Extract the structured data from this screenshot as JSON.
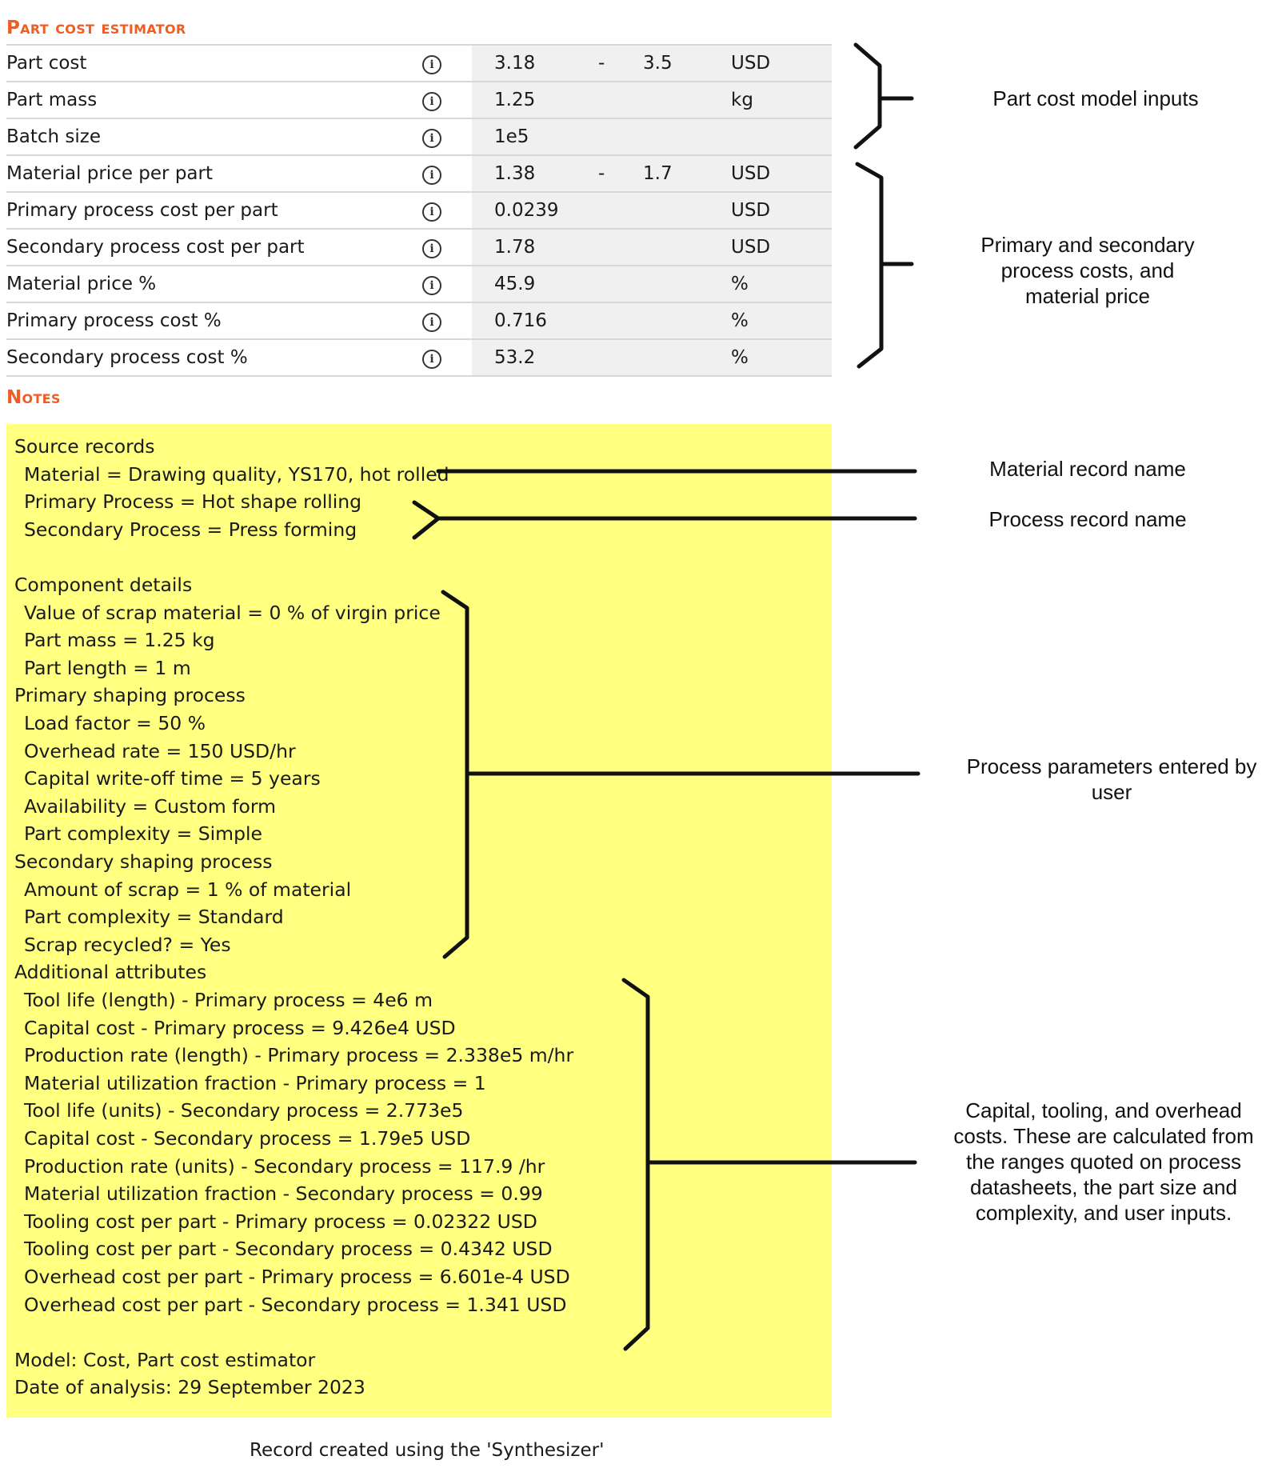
{
  "estimator": {
    "title": "Part cost estimator",
    "rows": [
      {
        "name": "Part cost",
        "v1": "3.18",
        "dash": "-",
        "v2": "3.5",
        "unit": "USD"
      },
      {
        "name": "Part mass",
        "v1": "1.25",
        "dash": "",
        "v2": "",
        "unit": "kg"
      },
      {
        "name": "Batch size",
        "v1": "1e5",
        "dash": "",
        "v2": "",
        "unit": ""
      },
      {
        "name": "Material price per part",
        "v1": "1.38",
        "dash": "-",
        "v2": "1.7",
        "unit": "USD"
      },
      {
        "name": "Primary process cost per part",
        "v1": "0.0239",
        "dash": "",
        "v2": "",
        "unit": "USD"
      },
      {
        "name": "Secondary process cost per part",
        "v1": "1.78",
        "dash": "",
        "v2": "",
        "unit": "USD"
      },
      {
        "name": "Material price %",
        "v1": "45.9",
        "dash": "",
        "v2": "",
        "unit": "%"
      },
      {
        "name": "Primary process cost %",
        "v1": "0.716",
        "dash": "",
        "v2": "",
        "unit": "%"
      },
      {
        "name": "Secondary process cost %",
        "v1": "53.2",
        "dash": "",
        "v2": "",
        "unit": "%"
      }
    ]
  },
  "notes": {
    "title": "Notes",
    "lines": [
      {
        "text": "Source records",
        "indent": false
      },
      {
        "text": "Material = Drawing quality, YS170, hot rolled",
        "indent": true
      },
      {
        "text": "Primary Process = Hot shape rolling",
        "indent": true
      },
      {
        "text": "Secondary Process = Press forming",
        "indent": true
      },
      {
        "text": "",
        "indent": false
      },
      {
        "text": "Component details",
        "indent": false
      },
      {
        "text": "Value of scrap material = 0 % of virgin price",
        "indent": true
      },
      {
        "text": "Part mass = 1.25 kg",
        "indent": true
      },
      {
        "text": "Part length = 1 m",
        "indent": true
      },
      {
        "text": "Primary shaping process",
        "indent": false
      },
      {
        "text": "Load factor = 50 %",
        "indent": true
      },
      {
        "text": "Overhead rate = 150 USD/hr",
        "indent": true
      },
      {
        "text": "Capital write-off time = 5 years",
        "indent": true
      },
      {
        "text": "Availability = Custom form",
        "indent": true
      },
      {
        "text": "Part complexity = Simple",
        "indent": true
      },
      {
        "text": "Secondary shaping process",
        "indent": false
      },
      {
        "text": "Amount of scrap = 1 % of material",
        "indent": true
      },
      {
        "text": "Part complexity = Standard",
        "indent": true
      },
      {
        "text": "Scrap recycled? = Yes",
        "indent": true
      },
      {
        "text": "Additional attributes",
        "indent": false
      },
      {
        "text": "Tool life (length) - Primary process = 4e6 m",
        "indent": true
      },
      {
        "text": "Capital cost - Primary process = 9.426e4 USD",
        "indent": true
      },
      {
        "text": "Production rate (length) - Primary process = 2.338e5 m/hr",
        "indent": true
      },
      {
        "text": "Material utilization fraction - Primary process = 1",
        "indent": true
      },
      {
        "text": "Tool life (units) - Secondary process = 2.773e5",
        "indent": true
      },
      {
        "text": "Capital cost - Secondary process = 1.79e5 USD",
        "indent": true
      },
      {
        "text": "Production rate (units) - Secondary process = 117.9 /hr",
        "indent": true
      },
      {
        "text": "Material utilization fraction - Secondary process = 0.99",
        "indent": true
      },
      {
        "text": "Tooling cost per part - Primary process = 0.02322 USD",
        "indent": true
      },
      {
        "text": "Tooling cost per part - Secondary process = 0.4342 USD",
        "indent": true
      },
      {
        "text": "Overhead cost per part - Primary process = 6.601e-4 USD",
        "indent": true
      },
      {
        "text": "Overhead cost per part - Secondary process = 1.341 USD",
        "indent": true
      },
      {
        "text": "",
        "indent": false
      },
      {
        "text": "Model: Cost, Part cost estimator",
        "indent": false
      },
      {
        "text": "Date of analysis: 29 September 2023",
        "indent": false
      }
    ]
  },
  "annotations": {
    "inputs": "Part cost model inputs",
    "process_costs": "Primary and secondary process costs, and material price",
    "material_record": "Material record name",
    "process_record": "Process record name",
    "process_params": "Process parameters entered by user",
    "capital_costs": "Capital, tooling, and overhead costs. These are calculated from the ranges quoted on process datasheets, the part size and complexity, and user inputs."
  },
  "footer": "Record created using the 'Synthesizer'",
  "colors": {
    "accent": "#f25c22",
    "notes_bg": "#ffff80",
    "value_bg": "#f0f0f0"
  },
  "icons": {
    "info": "info-circle-icon"
  }
}
